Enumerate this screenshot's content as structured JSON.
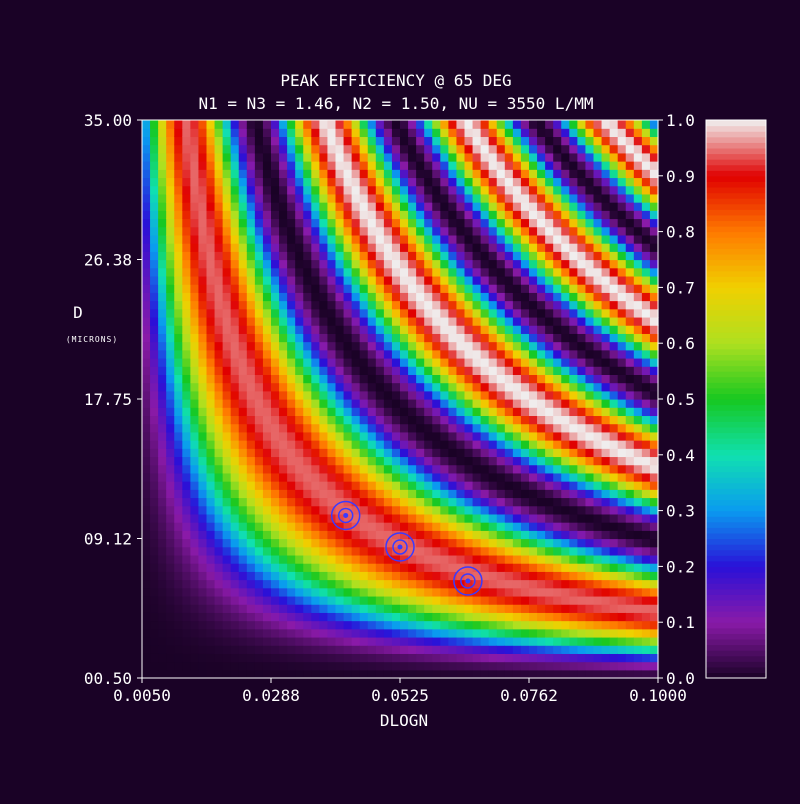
{
  "chart_data": {
    "type": "heatmap",
    "title": "PEAK EFFICIENCY @ 65 DEG",
    "subtitle": "N1 = N3 = 1.46, N2 = 1.50, NU = 3550 L/MM",
    "xlabel": "DLOGN",
    "ylabel": "D",
    "ylabel_units": "(MICRONS)",
    "x_range": [
      0.005,
      0.1
    ],
    "y_range": [
      0.5,
      35.0
    ],
    "x_ticks": [
      "0.0050",
      "0.0288",
      "0.0525",
      "0.0762",
      "0.1000"
    ],
    "y_ticks": [
      "00.50",
      "09.12",
      "17.75",
      "26.38",
      "35.00"
    ],
    "colorbar": {
      "range": [
        0.0,
        1.0
      ],
      "ticks": [
        "0.0",
        "0.1",
        "0.2",
        "0.3",
        "0.4",
        "0.5",
        "0.6",
        "0.7",
        "0.8",
        "0.9",
        "1.0"
      ],
      "colormap": [
        "#1a0226",
        "#8a1aa8",
        "#2a10d8",
        "#0a9af0",
        "#10e0b0",
        "#16c820",
        "#aee020",
        "#f0d000",
        "#ff7a00",
        "#e00000",
        "#f0f0f0"
      ]
    },
    "markers": [
      {
        "x": 0.0425,
        "y": 10.55
      },
      {
        "x": 0.0525,
        "y": 8.6
      },
      {
        "x": 0.065,
        "y": 6.5
      }
    ],
    "grid": false
  }
}
